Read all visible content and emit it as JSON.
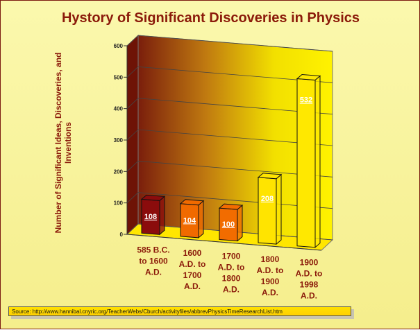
{
  "chart_data": {
    "type": "bar",
    "title": "Hystory of Significant Discoveries in Physics",
    "xlabel": "",
    "ylabel": "Number of Significant Ideas, Discoveries, and Inventions",
    "ylim": [
      0,
      600
    ],
    "yticks": [
      0,
      100,
      200,
      300,
      400,
      500,
      600
    ],
    "categories": [
      [
        "585 B.C.",
        "to 1600",
        "A.D."
      ],
      [
        "1600",
        "A.D. to",
        "1700",
        "A.D."
      ],
      [
        "1700",
        "A.D. to",
        "1800",
        "A.D."
      ],
      [
        "1800",
        "A.D. to",
        "1900",
        "A.D."
      ],
      [
        "1900",
        "A.D. to",
        "1998",
        "A.D."
      ]
    ],
    "values": [
      108,
      104,
      100,
      208,
      532
    ],
    "data_labels": [
      "108",
      "104",
      "100",
      "208",
      "532"
    ],
    "grid": true,
    "bar_colors": [
      "#8b0c0c",
      "#f06a00",
      "#f26c00",
      "#ffe400",
      "#ffe800"
    ],
    "source": "Source:  http://www.hannibal.cnyric.org/TeacherWebs/Cburch/activityfiles/abbrevPhysicsTimeResearchList.htm"
  }
}
